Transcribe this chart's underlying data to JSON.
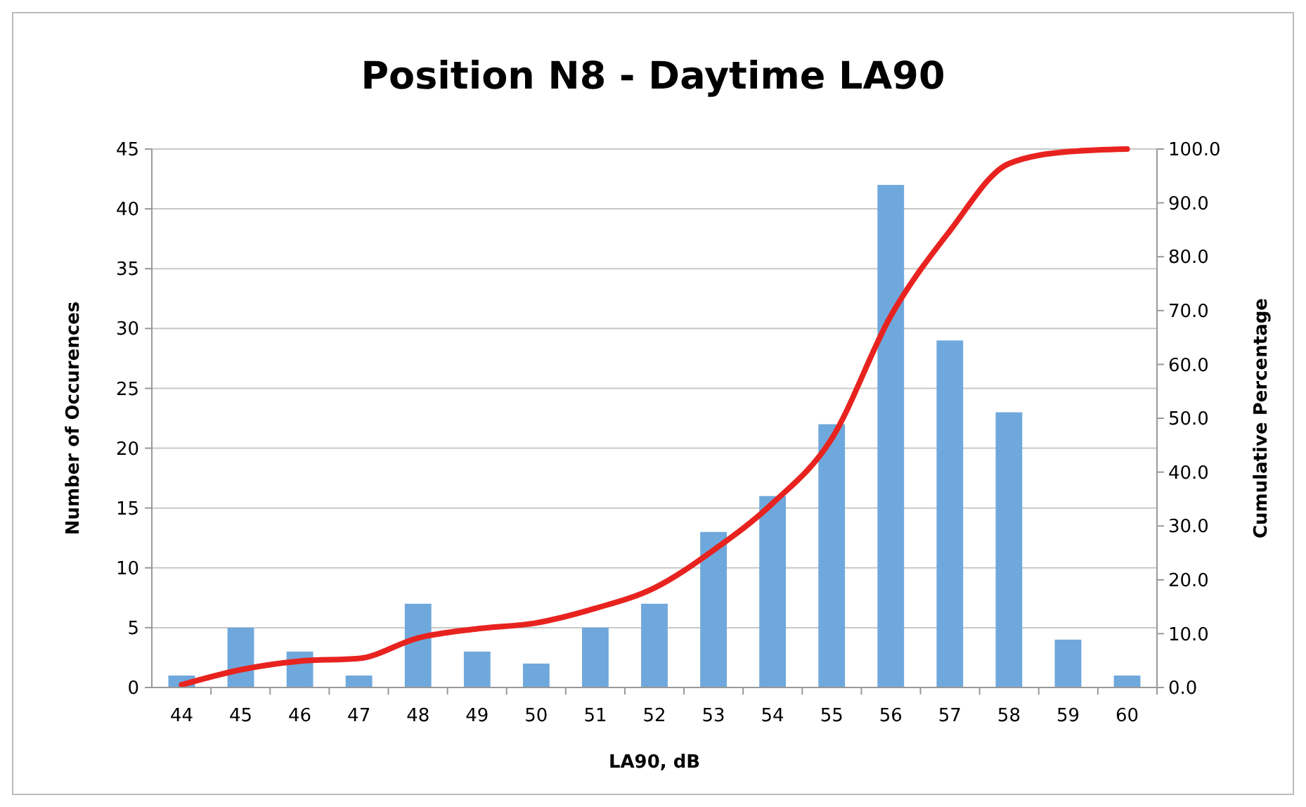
{
  "chart_data": {
    "type": "bar",
    "title": "Position N8 - Daytime LA90",
    "xlabel": "LA90, dB",
    "ylabel": "Number of Occurences",
    "y2label": "Cumulative Percentage",
    "categories": [
      "44",
      "45",
      "46",
      "47",
      "48",
      "49",
      "50",
      "51",
      "52",
      "53",
      "54",
      "55",
      "56",
      "57",
      "58",
      "59",
      "60"
    ],
    "series": [
      {
        "color": "#6fa8dc",
        "values": [
          1,
          5,
          3,
          1,
          7,
          3,
          2,
          5,
          7,
          13,
          16,
          22,
          42,
          29,
          23,
          4,
          1
        ]
      },
      {
        "type": "line",
        "axis": "y2",
        "color": "#e8231f",
        "values": [
          0.5,
          3.3,
          4.9,
          5.4,
          9.2,
          10.9,
          12.0,
          14.7,
          18.5,
          25.5,
          34.2,
          46.2,
          69.0,
          84.8,
          97.3,
          99.5,
          100.0
        ]
      }
    ],
    "ylim": [
      0,
      45
    ],
    "yticks": [
      0,
      5,
      10,
      15,
      20,
      25,
      30,
      35,
      40,
      45
    ],
    "y2lim": [
      0,
      100
    ],
    "y2ticks": [
      {
        "value": 0,
        "label": "0.0"
      },
      {
        "value": 10,
        "label": "10.0"
      },
      {
        "value": 20,
        "label": "20.0"
      },
      {
        "value": 30,
        "label": "30.0"
      },
      {
        "value": 40,
        "label": "40.0"
      },
      {
        "value": 50,
        "label": "50.0"
      },
      {
        "value": 60,
        "label": "60.0"
      },
      {
        "value": 70,
        "label": "70.0"
      },
      {
        "value": 80,
        "label": "80.0"
      },
      {
        "value": 90,
        "label": "90.0"
      },
      {
        "value": 100,
        "label": "100.0"
      }
    ],
    "grid": "y",
    "marker": "none",
    "line_style": "solid"
  }
}
